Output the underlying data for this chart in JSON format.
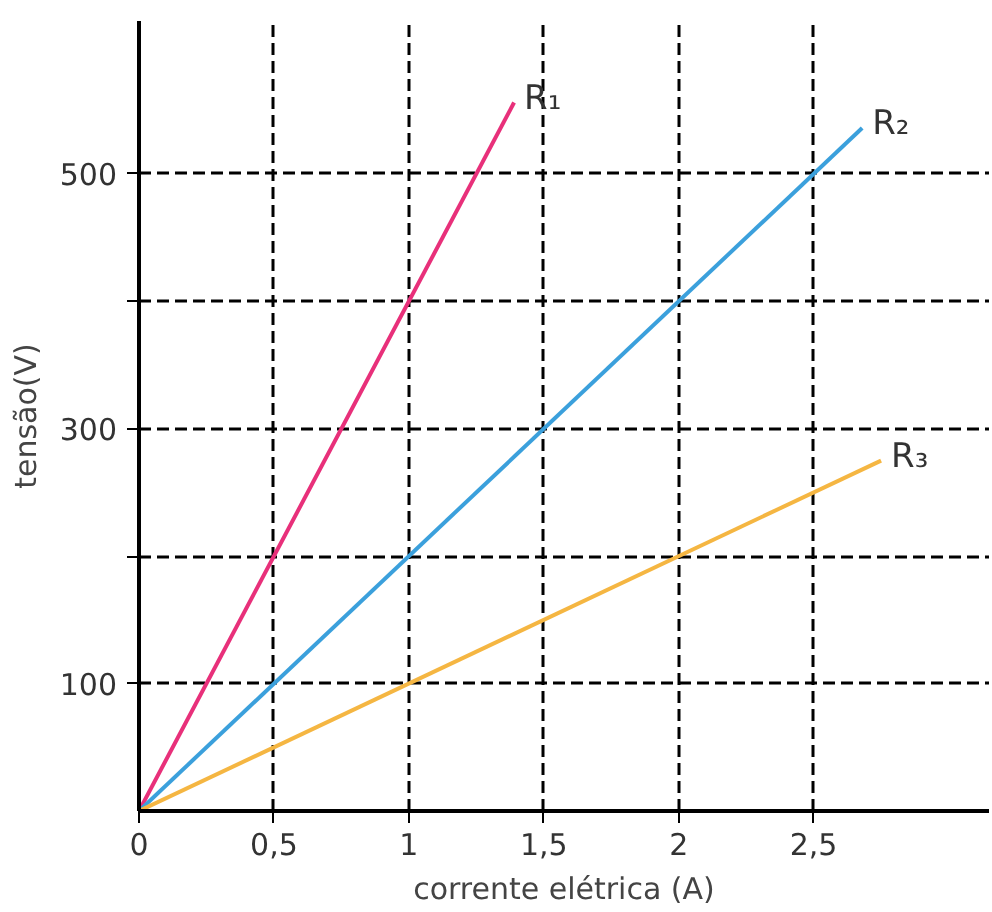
{
  "chart_data": {
    "type": "line",
    "xlabel": "corrente elétrica (A)",
    "ylabel": "tensão(V)",
    "xlim": [
      0,
      3.15
    ],
    "ylim": [
      0,
      620
    ],
    "xticks": [
      {
        "value": 0,
        "label": "0"
      },
      {
        "value": 0.5,
        "label": "0,5"
      },
      1,
      {
        "value": 1.5,
        "label": "1,5"
      },
      2,
      {
        "value": 2.5,
        "label": "2,5"
      }
    ],
    "yticks": [
      100,
      {
        "value": 200,
        "label": null
      },
      300,
      {
        "value": 400,
        "label": null
      },
      500
    ],
    "grid": true,
    "marker": "none",
    "line_style": "solid",
    "series": [
      {
        "name": "R₁",
        "color": "#e8307a",
        "x": [
          0,
          1.39
        ],
        "values": [
          0,
          556
        ]
      },
      {
        "name": "R₂",
        "color": "#3ba0dc",
        "x": [
          0,
          2.68
        ],
        "values": [
          0,
          536
        ]
      },
      {
        "name": "R₃",
        "color": "#f5b642",
        "x": [
          0,
          2.75
        ],
        "values": [
          0,
          275
        ]
      }
    ]
  }
}
